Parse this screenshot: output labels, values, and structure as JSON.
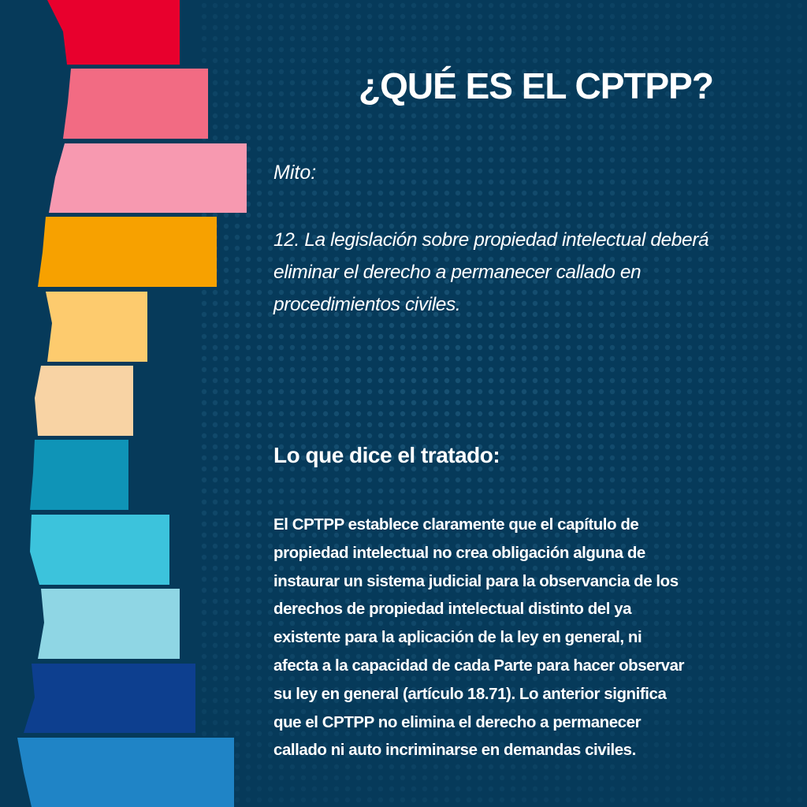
{
  "title": "¿QUÉ ES EL CPTPP?",
  "myth": {
    "label": "Mito:",
    "lines": [
      "12. La legislación sobre propiedad intelectual deberá",
      "eliminar el derecho a permanecer callado en",
      "procedimientos civiles."
    ]
  },
  "treaty": {
    "heading": "Lo que dice el tratado:",
    "lines": [
      "El CPTPP establece claramente que el capítulo de",
      "propiedad intelectual no crea obligación alguna de",
      "instaurar un sistema judicial para la observancia de los",
      "derechos de propiedad intelectual distinto del ya",
      "existente para la aplicación de la ley en general, ni",
      "afecta a la capacidad de cada Parte para hacer observar",
      "su ley en general (artículo 18.71). Lo anterior significa",
      "que el CPTPP no elimina el derecho a permanecer",
      "callado ni auto incriminarse en demandas civiles."
    ]
  }
}
